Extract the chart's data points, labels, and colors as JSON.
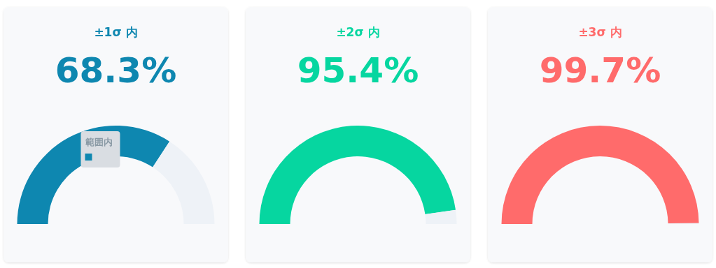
{
  "chart_data": [
    {
      "type": "donut",
      "title": "±1σ 内",
      "categories": [
        "範囲内",
        null
      ],
      "values": [
        68.3,
        31.7
      ],
      "colors": [
        "#0e87b0",
        "#eef2f7"
      ],
      "value_labels": [
        "68.3%",
        null
      ]
    },
    {
      "type": "donut",
      "title": "±2σ 内",
      "categories": [
        null,
        null
      ],
      "values": [
        95.4,
        4.6
      ],
      "colors": [
        "#06d6a0",
        "#eef2f7"
      ],
      "value_labels": [
        "95.4%",
        null
      ]
    },
    {
      "type": "donut",
      "title": "±3σ 内",
      "categories": [
        null,
        null
      ],
      "values": [
        99.7,
        0.3
      ],
      "colors": [
        "#ff6b6b",
        "#eef2f7"
      ],
      "value_labels": [
        "99.7%",
        null
      ]
    }
  ]
}
